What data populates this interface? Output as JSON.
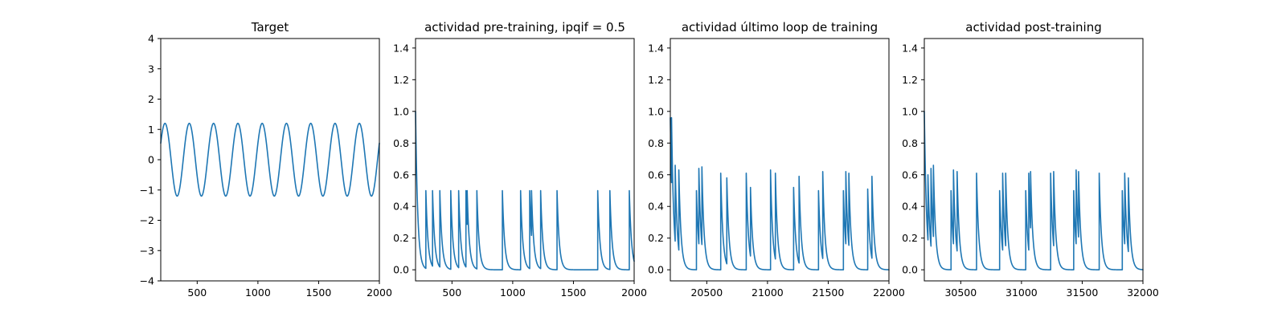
{
  "colors": {
    "line": "#1f77b4",
    "axes": "#000000",
    "background": "#ffffff"
  },
  "chart_data": [
    {
      "type": "line",
      "title": "Target",
      "xlabel": "",
      "ylabel": "",
      "xlim": [
        200,
        2000
      ],
      "ylim": [
        -4,
        4
      ],
      "xticks": [
        500,
        1000,
        1500,
        2000
      ],
      "xtick_labels": [
        "500",
        "1000",
        "1500",
        "2000"
      ],
      "yticks": [
        -4,
        -3,
        -2,
        -1,
        0,
        1,
        2,
        3,
        4
      ],
      "ytick_labels": [
        "−4",
        "−3",
        "−2",
        "−1",
        "0",
        "1",
        "2",
        "3",
        "4"
      ],
      "grid": false,
      "series": [
        {
          "kind": "sine",
          "amplitude": 1.2,
          "period": 200,
          "peaks": [
            235,
            435,
            635,
            835,
            1035,
            1235,
            1435,
            1635,
            1835
          ],
          "troughs": [
            335,
            535,
            735,
            935,
            1135,
            1335,
            1535,
            1735,
            1935
          ],
          "x_end": 2000,
          "y_end": 0.4
        }
      ]
    },
    {
      "type": "line",
      "title": "actividad pre-training, ipqif = 0.5",
      "xlabel": "",
      "ylabel": "",
      "xlim": [
        200,
        2000
      ],
      "ylim": [
        -0.07,
        1.46
      ],
      "xticks": [
        500,
        1000,
        1500,
        2000
      ],
      "xtick_labels": [
        "500",
        "1000",
        "1500",
        "2000"
      ],
      "yticks": [
        0.0,
        0.2,
        0.4,
        0.6,
        0.8,
        1.0,
        1.2,
        1.4
      ],
      "ytick_labels": [
        "0.0",
        "0.2",
        "0.4",
        "0.6",
        "0.8",
        "1.0",
        "1.2",
        "1.4"
      ],
      "grid": false,
      "series": [
        {
          "kind": "spike_train",
          "initial": {
            "x": 200,
            "y": 1.0
          },
          "decay": 18,
          "spikes": [
            {
              "x": 285,
              "y": 0.5
            },
            {
              "x": 340,
              "y": 0.5
            },
            {
              "x": 400,
              "y": 0.5
            },
            {
              "x": 490,
              "y": 0.5
            },
            {
              "x": 555,
              "y": 0.5
            },
            {
              "x": 615,
              "y": 0.5
            },
            {
              "x": 625,
              "y": 0.5
            },
            {
              "x": 705,
              "y": 0.5
            },
            {
              "x": 915,
              "y": 0.5
            },
            {
              "x": 1065,
              "y": 0.5
            },
            {
              "x": 1140,
              "y": 0.5
            },
            {
              "x": 1155,
              "y": 0.5
            },
            {
              "x": 1230,
              "y": 0.5
            },
            {
              "x": 1365,
              "y": 0.5
            },
            {
              "x": 1700,
              "y": 0.5
            },
            {
              "x": 1800,
              "y": 0.5
            },
            {
              "x": 1960,
              "y": 0.5
            }
          ],
          "x_end": 2000
        }
      ]
    },
    {
      "type": "line",
      "title": "actividad último loop de training",
      "xlabel": "",
      "ylabel": "",
      "xlim": [
        20200,
        22000
      ],
      "ylim": [
        -0.07,
        1.46
      ],
      "xticks": [
        20500,
        21000,
        21500,
        22000
      ],
      "xtick_labels": [
        "20500",
        "21000",
        "21500",
        "22000"
      ],
      "yticks": [
        0.0,
        0.2,
        0.4,
        0.6,
        0.8,
        1.0,
        1.2,
        1.4
      ],
      "ytick_labels": [
        "0.0",
        "0.2",
        "0.4",
        "0.6",
        "0.8",
        "1.0",
        "1.2",
        "1.4"
      ],
      "grid": false,
      "series": [
        {
          "kind": "spike_train",
          "initial": {
            "x": 20200,
            "y": 0.96
          },
          "decay": 18,
          "spikes": [
            {
              "x": 20210,
              "y": 0.96
            },
            {
              "x": 20240,
              "y": 0.66
            },
            {
              "x": 20270,
              "y": 0.63
            },
            {
              "x": 20415,
              "y": 0.5
            },
            {
              "x": 20435,
              "y": 0.64
            },
            {
              "x": 20460,
              "y": 0.65
            },
            {
              "x": 20615,
              "y": 0.61
            },
            {
              "x": 20665,
              "y": 0.58
            },
            {
              "x": 20825,
              "y": 0.61
            },
            {
              "x": 20860,
              "y": 0.52
            },
            {
              "x": 21025,
              "y": 0.63
            },
            {
              "x": 21065,
              "y": 0.61
            },
            {
              "x": 21215,
              "y": 0.52
            },
            {
              "x": 21260,
              "y": 0.59
            },
            {
              "x": 21420,
              "y": 0.5
            },
            {
              "x": 21455,
              "y": 0.62
            },
            {
              "x": 21625,
              "y": 0.5
            },
            {
              "x": 21645,
              "y": 0.62
            },
            {
              "x": 21670,
              "y": 0.61
            },
            {
              "x": 21825,
              "y": 0.51
            },
            {
              "x": 21860,
              "y": 0.59
            }
          ],
          "x_end": 22000
        }
      ]
    },
    {
      "type": "line",
      "title": "actividad post-training",
      "xlabel": "",
      "ylabel": "",
      "xlim": [
        30200,
        32000
      ],
      "ylim": [
        -0.07,
        1.46
      ],
      "xticks": [
        30500,
        31000,
        31500,
        32000
      ],
      "xtick_labels": [
        "30500",
        "31000",
        "31500",
        "32000"
      ],
      "yticks": [
        0.0,
        0.2,
        0.4,
        0.6,
        0.8,
        1.0,
        1.2,
        1.4
      ],
      "ytick_labels": [
        "0.0",
        "0.2",
        "0.4",
        "0.6",
        "0.8",
        "1.0",
        "1.2",
        "1.4"
      ],
      "grid": false,
      "series": [
        {
          "kind": "spike_train",
          "initial": {
            "x": 30200,
            "y": 1.0
          },
          "decay": 18,
          "spikes": [
            {
              "x": 30230,
              "y": 0.6
            },
            {
              "x": 30255,
              "y": 0.64
            },
            {
              "x": 30275,
              "y": 0.66
            },
            {
              "x": 30420,
              "y": 0.5
            },
            {
              "x": 30440,
              "y": 0.63
            },
            {
              "x": 30470,
              "y": 0.62
            },
            {
              "x": 30630,
              "y": 0.61
            },
            {
              "x": 30820,
              "y": 0.5
            },
            {
              "x": 30845,
              "y": 0.61
            },
            {
              "x": 30870,
              "y": 0.61
            },
            {
              "x": 31035,
              "y": 0.5
            },
            {
              "x": 31060,
              "y": 0.61
            },
            {
              "x": 31075,
              "y": 0.62
            },
            {
              "x": 31240,
              "y": 0.61
            },
            {
              "x": 31265,
              "y": 0.62
            },
            {
              "x": 31430,
              "y": 0.5
            },
            {
              "x": 31450,
              "y": 0.63
            },
            {
              "x": 31470,
              "y": 0.62
            },
            {
              "x": 31640,
              "y": 0.61
            },
            {
              "x": 31830,
              "y": 0.5
            },
            {
              "x": 31850,
              "y": 0.61
            },
            {
              "x": 31880,
              "y": 0.58
            }
          ],
          "x_end": 32000
        }
      ]
    }
  ]
}
